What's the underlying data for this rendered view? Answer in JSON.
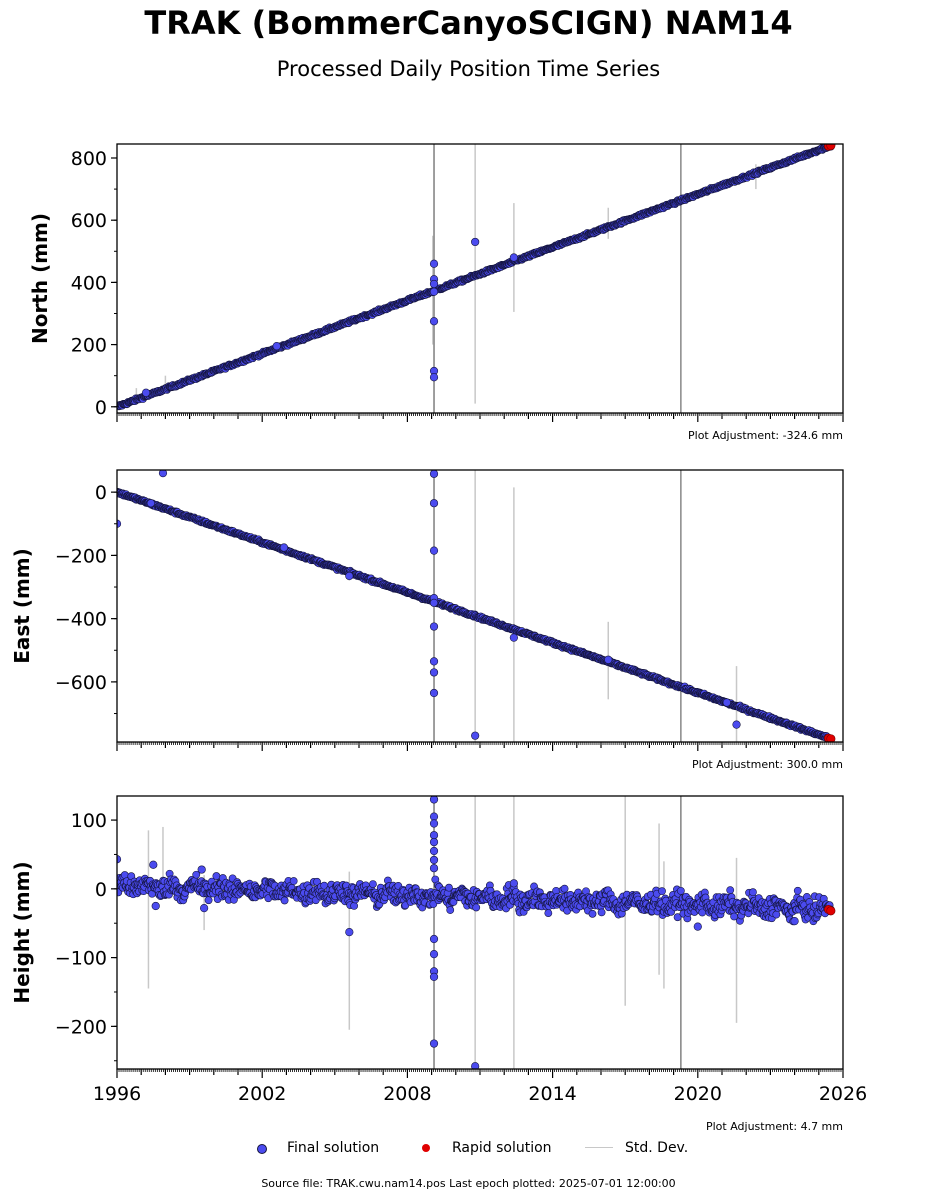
{
  "title": "TRAK (BommerCanyoSCIGN) NAM14",
  "subtitle": "Processed Daily Position Time Series",
  "colors": {
    "final": "#4b4bef",
    "final_edge": "#14143c",
    "rapid": "#e00000",
    "stddev": "#c8c8c8",
    "offset_line": "#888888"
  },
  "legend": {
    "final": "Final solution",
    "rapid": "Rapid solution",
    "stddev": "Std. Dev."
  },
  "footer": "Source file: TRAK.cwu.nam14.pos  Last epoch plotted: 2025-07-01 12:00:00",
  "chart_data": [
    {
      "type": "scatter",
      "ylabel": "North (mm)",
      "adjustment": "Plot Adjustment: -324.6 mm",
      "xlim": [
        1996,
        2026
      ],
      "ylim": [
        -20,
        845
      ],
      "yticks": [
        0,
        200,
        400,
        600,
        800
      ],
      "yminor_step": 100,
      "offset_lines": [
        2009.1,
        2019.3
      ],
      "trend": {
        "x0": 1996.0,
        "y0": 0,
        "x1": 2025.5,
        "y1": 840,
        "noise": 3
      },
      "outliers": [
        [
          2009.1,
          460
        ],
        [
          2009.1,
          410
        ],
        [
          2009.1,
          395
        ],
        [
          2009.1,
          370
        ],
        [
          2009.1,
          275
        ],
        [
          2009.1,
          115
        ],
        [
          2009.1,
          95
        ],
        [
          2010.8,
          530
        ],
        [
          2012.4,
          480
        ],
        [
          1997.2,
          45
        ],
        [
          2002.6,
          195
        ]
      ],
      "stddev_bars": [
        [
          2009.1,
          -20,
          845
        ],
        [
          2009.05,
          200,
          550
        ],
        [
          2010.8,
          10,
          845
        ],
        [
          2012.4,
          305,
          655
        ],
        [
          2016.3,
          540,
          640
        ],
        [
          2022.4,
          700,
          780
        ],
        [
          1996.8,
          10,
          60
        ],
        [
          1998.0,
          50,
          100
        ]
      ],
      "rapid": [
        [
          2025.4,
          838
        ],
        [
          2025.5,
          840
        ]
      ]
    },
    {
      "type": "scatter",
      "ylabel": "East (mm)",
      "adjustment": "Plot Adjustment: 300.0 mm",
      "xlim": [
        1996,
        2026
      ],
      "ylim": [
        -790,
        70
      ],
      "yticks": [
        0,
        -200,
        -400,
        -600
      ],
      "yminor_step": 100,
      "offset_lines": [
        2009.1,
        2019.3
      ],
      "trend": {
        "x0": 1996.0,
        "y0": 0,
        "x1": 2025.5,
        "y1": -780,
        "noise": 3
      },
      "outliers": [
        [
          1996.0,
          -100
        ],
        [
          1997.9,
          60
        ],
        [
          1997.4,
          -35
        ],
        [
          2009.1,
          58
        ],
        [
          2009.1,
          -35
        ],
        [
          2009.1,
          -185
        ],
        [
          2009.1,
          -335
        ],
        [
          2009.1,
          -350
        ],
        [
          2009.1,
          -425
        ],
        [
          2009.1,
          -535
        ],
        [
          2009.1,
          -570
        ],
        [
          2009.1,
          -635
        ],
        [
          2010.8,
          -770
        ],
        [
          2012.4,
          -460
        ],
        [
          2016.3,
          -530
        ],
        [
          2021.6,
          -735
        ],
        [
          2021.2,
          -665
        ],
        [
          2002.9,
          -175
        ],
        [
          2005.6,
          -265
        ]
      ],
      "stddev_bars": [
        [
          2009.1,
          -790,
          70
        ],
        [
          2010.8,
          -790,
          70
        ],
        [
          2012.4,
          -790,
          15
        ],
        [
          2016.3,
          -655,
          -410
        ],
        [
          2021.6,
          -790,
          -550
        ],
        [
          2005.6,
          -280,
          -250
        ]
      ],
      "rapid": [
        [
          2025.4,
          -778
        ],
        [
          2025.5,
          -780
        ]
      ]
    },
    {
      "type": "scatter",
      "ylabel": "Height (mm)",
      "adjustment": "Plot Adjustment: 4.7 mm",
      "xlim": [
        1996,
        2026
      ],
      "ylim": [
        -262,
        135
      ],
      "yticks": [
        100,
        0,
        -100,
        -200
      ],
      "yminor_step": 50,
      "xticks": [
        1996,
        2002,
        2008,
        2014,
        2020,
        2026
      ],
      "offset_lines": [
        2009.1,
        2019.3
      ],
      "trend": {
        "x0": 1996.0,
        "y0": 5,
        "x1": 2025.5,
        "y1": -30,
        "noise": 11
      },
      "outliers": [
        [
          1996.0,
          43
        ],
        [
          1997.5,
          35
        ],
        [
          1997.6,
          -25
        ],
        [
          1999.5,
          28
        ],
        [
          1999.6,
          -28
        ],
        [
          2005.6,
          -63
        ],
        [
          2009.1,
          130
        ],
        [
          2009.1,
          105
        ],
        [
          2009.1,
          95
        ],
        [
          2009.1,
          78
        ],
        [
          2009.1,
          68
        ],
        [
          2009.1,
          55
        ],
        [
          2009.1,
          42
        ],
        [
          2009.1,
          30
        ],
        [
          2009.1,
          -73
        ],
        [
          2009.1,
          -95
        ],
        [
          2009.1,
          -120
        ],
        [
          2009.1,
          -128
        ],
        [
          2009.1,
          -225
        ],
        [
          2010.8,
          -258
        ],
        [
          2012.4,
          8
        ],
        [
          2020.0,
          -55
        ],
        [
          2024.0,
          -47
        ]
      ],
      "stddev_bars": [
        [
          2009.1,
          -262,
          135
        ],
        [
          2010.8,
          -262,
          135
        ],
        [
          2012.4,
          -262,
          135
        ],
        [
          2019.3,
          -262,
          135
        ],
        [
          2017.0,
          -170,
          135
        ],
        [
          2021.6,
          -195,
          45
        ],
        [
          2005.6,
          -205,
          25
        ],
        [
          1997.3,
          -145,
          85
        ],
        [
          1997.9,
          -10,
          90
        ],
        [
          2018.4,
          -125,
          95
        ],
        [
          2018.6,
          -145,
          40
        ],
        [
          1999.6,
          -60,
          20
        ]
      ],
      "rapid": [
        [
          2025.4,
          -30
        ],
        [
          2025.5,
          -32
        ]
      ]
    }
  ]
}
